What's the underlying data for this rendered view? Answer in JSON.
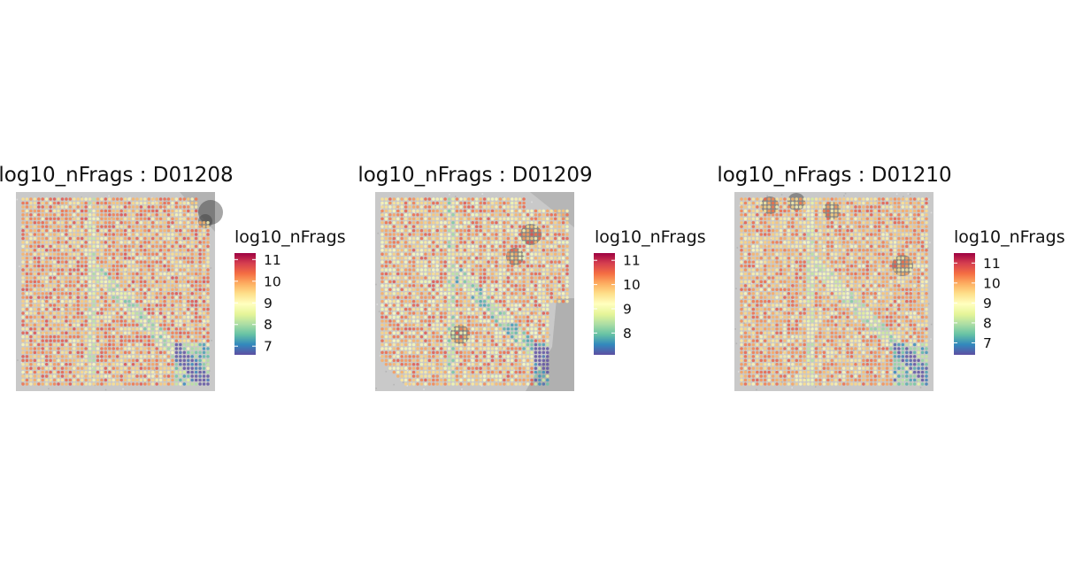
{
  "chart_data": [
    {
      "type": "heatmap",
      "title": "log10_nFrags : D01208",
      "sample": "D01208",
      "legend": {
        "title": "log10_nFrags",
        "placement": "right",
        "ticks": [
          7,
          8,
          9,
          10,
          11
        ],
        "range": [
          6.6,
          11.3
        ]
      },
      "palette": [
        "#5E4FA2",
        "#3288BD",
        "#66C2A5",
        "#ABDDA4",
        "#E6F598",
        "#FFFFBF",
        "#FEE08B",
        "#FDAE61",
        "#F46D43",
        "#D53E4F",
        "#9E0142"
      ],
      "grid": false
    },
    {
      "type": "heatmap",
      "title": "log10_nFrags : D01209",
      "sample": "D01209",
      "legend": {
        "title": "log10_nFrags",
        "placement": "right",
        "ticks": [
          8,
          9,
          10,
          11
        ],
        "range": [
          7.1,
          11.3
        ]
      },
      "palette": [
        "#5E4FA2",
        "#3288BD",
        "#66C2A5",
        "#ABDDA4",
        "#E6F598",
        "#FFFFBF",
        "#FEE08B",
        "#FDAE61",
        "#F46D43",
        "#D53E4F",
        "#9E0142"
      ],
      "grid": false
    },
    {
      "type": "heatmap",
      "title": "log10_nFrags : D01210",
      "sample": "D01210",
      "legend": {
        "title": "log10_nFrags",
        "placement": "right",
        "ticks": [
          7,
          8,
          9,
          10,
          11
        ],
        "range": [
          6.4,
          11.5
        ]
      },
      "palette": [
        "#5E4FA2",
        "#3288BD",
        "#66C2A5",
        "#ABDDA4",
        "#E6F598",
        "#FFFFBF",
        "#FEE08B",
        "#FDAE61",
        "#F46D43",
        "#D53E4F",
        "#9E0142"
      ],
      "grid": false
    }
  ]
}
